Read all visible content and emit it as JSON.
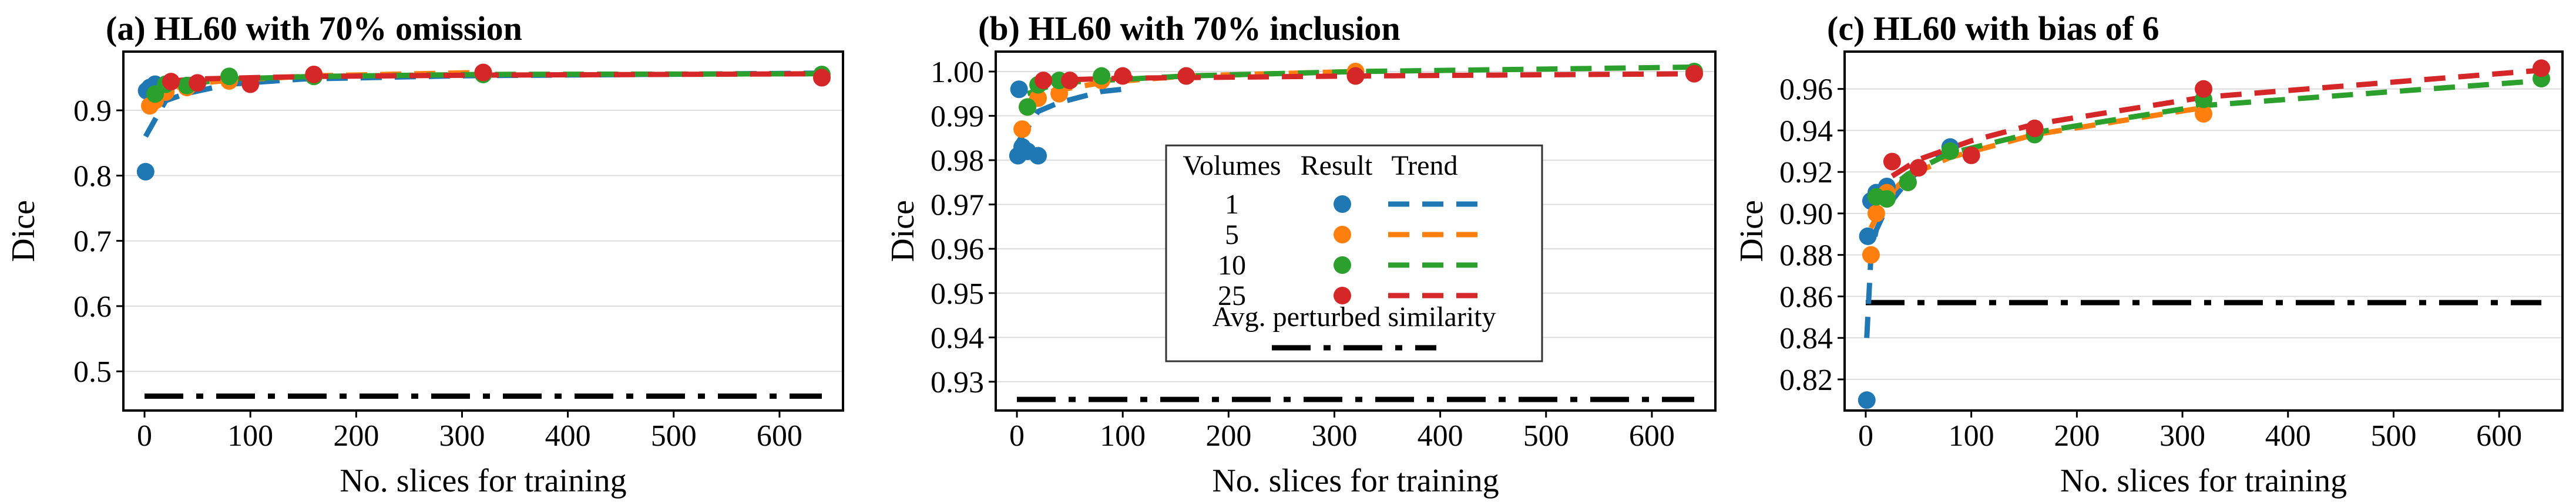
{
  "chart_data": [
    {
      "type": "scatter",
      "title": "(a) HL60 with 70% omission",
      "xlabel": "No. slices for training",
      "ylabel": "Dice",
      "xlim": [
        -20,
        660
      ],
      "ylim": [
        0.44,
        0.99
      ],
      "xticks": [
        0,
        100,
        200,
        300,
        400,
        500,
        600
      ],
      "yticks": [
        0.5,
        0.6,
        0.7,
        0.8,
        0.9
      ],
      "ytick_labels": [
        "0.5",
        "0.6",
        "0.7",
        "0.8",
        "0.9"
      ],
      "grid": "horizontal",
      "baseline": {
        "name": "Avg. perturbed similarity",
        "value": 0.462
      },
      "series": [
        {
          "name": "1",
          "color": "#1f77b4",
          "x": [
            1,
            2,
            5,
            10,
            20
          ],
          "y": [
            0.806,
            0.93,
            0.935,
            0.94,
            0.93
          ],
          "trend": [
            [
              1,
              0.86
            ],
            [
              20,
              0.915
            ],
            [
              40,
              0.926
            ],
            [
              80,
              0.94
            ],
            [
              150,
              0.948
            ],
            [
              300,
              0.953
            ],
            [
              640,
              0.957
            ]
          ]
        },
        {
          "name": "5",
          "color": "#ff7f0e",
          "x": [
            5,
            10,
            20,
            40,
            80,
            160,
            320
          ],
          "y": [
            0.907,
            0.915,
            0.928,
            0.935,
            0.945,
            0.955,
            0.958
          ],
          "trend": [
            [
              5,
              0.905
            ],
            [
              20,
              0.93
            ],
            [
              40,
              0.94
            ],
            [
              80,
              0.946
            ],
            [
              160,
              0.953
            ],
            [
              320,
              0.958
            ]
          ]
        },
        {
          "name": "10",
          "color": "#2ca02c",
          "x": [
            10,
            20,
            40,
            80,
            160,
            320,
            640
          ],
          "y": [
            0.925,
            0.94,
            0.938,
            0.952,
            0.952,
            0.955,
            0.955
          ],
          "trend": [
            [
              10,
              0.93
            ],
            [
              40,
              0.94
            ],
            [
              80,
              0.948
            ],
            [
              160,
              0.952
            ],
            [
              320,
              0.955
            ],
            [
              640,
              0.956
            ]
          ]
        },
        {
          "name": "25",
          "color": "#d62728",
          "x": [
            25,
            50,
            100,
            160,
            320,
            640
          ],
          "y": [
            0.944,
            0.942,
            0.94,
            0.955,
            0.958,
            0.95
          ],
          "trend": [
            [
              25,
              0.945
            ],
            [
              50,
              0.948
            ],
            [
              100,
              0.95
            ],
            [
              160,
              0.952
            ],
            [
              320,
              0.954
            ],
            [
              640,
              0.956
            ]
          ]
        }
      ]
    },
    {
      "type": "scatter",
      "title": "(b) HL60 with 70% inclusion",
      "xlabel": "No. slices for training",
      "ylabel": "Dice",
      "xlim": [
        -20,
        660
      ],
      "ylim": [
        0.9235,
        1.0045
      ],
      "xticks": [
        0,
        100,
        200,
        300,
        400,
        500,
        600
      ],
      "yticks": [
        0.93,
        0.94,
        0.95,
        0.96,
        0.97,
        0.98,
        0.99,
        1.0
      ],
      "ytick_labels": [
        "0.93",
        "0.94",
        "0.95",
        "0.96",
        "0.97",
        "0.98",
        "0.99",
        "1.00"
      ],
      "grid": "horizontal",
      "baseline": {
        "name": "Avg. perturbed similarity",
        "value": 0.926
      },
      "series": [
        {
          "name": "1",
          "color": "#1f77b4",
          "x": [
            1,
            2,
            5,
            10,
            20
          ],
          "y": [
            0.981,
            0.996,
            0.983,
            0.982,
            0.981
          ],
          "trend": [
            [
              1,
              0.984
            ],
            [
              20,
              0.991
            ],
            [
              40,
              0.993
            ],
            [
              80,
              0.9955
            ],
            [
              100,
              0.996
            ]
          ]
        },
        {
          "name": "5",
          "color": "#ff7f0e",
          "x": [
            5,
            10,
            20,
            40,
            80,
            160,
            320
          ],
          "y": [
            0.987,
            0.992,
            0.994,
            0.995,
            0.998,
            0.999,
            1.0
          ],
          "trend": [
            [
              5,
              0.992
            ],
            [
              20,
              0.995
            ],
            [
              80,
              0.9975
            ],
            [
              160,
              0.999
            ],
            [
              320,
              1.0
            ]
          ]
        },
        {
          "name": "10",
          "color": "#2ca02c",
          "x": [
            10,
            20,
            40,
            80,
            160,
            320,
            640
          ],
          "y": [
            0.992,
            0.997,
            0.998,
            0.999,
            0.999,
            0.999,
            1.0
          ],
          "trend": [
            [
              10,
              0.995
            ],
            [
              40,
              0.9975
            ],
            [
              160,
              0.999
            ],
            [
              320,
              1.0
            ],
            [
              640,
              1.001
            ]
          ]
        },
        {
          "name": "25",
          "color": "#d62728",
          "x": [
            25,
            50,
            100,
            160,
            320,
            640
          ],
          "y": [
            0.998,
            0.998,
            0.999,
            0.999,
            0.999,
            0.9995
          ],
          "trend": [
            [
              25,
              0.998
            ],
            [
              100,
              0.9985
            ],
            [
              320,
              0.999
            ],
            [
              640,
              0.9995
            ]
          ]
        }
      ],
      "legend": {
        "placement": "center",
        "headers": [
          "Volumes",
          "Result",
          "Trend"
        ],
        "baseline_label": "Avg. perturbed similarity"
      }
    },
    {
      "type": "scatter",
      "title": "(c) HL60 with bias of 6",
      "xlabel": "No. slices for training",
      "ylabel": "Dice",
      "xlim": [
        -20,
        660
      ],
      "ylim": [
        0.805,
        0.978
      ],
      "xticks": [
        0,
        100,
        200,
        300,
        400,
        500,
        600
      ],
      "yticks": [
        0.82,
        0.84,
        0.86,
        0.88,
        0.9,
        0.92,
        0.94,
        0.96
      ],
      "ytick_labels": [
        "0.82",
        "0.84",
        "0.86",
        "0.88",
        "0.90",
        "0.92",
        "0.94",
        "0.96"
      ],
      "grid": "horizontal",
      "baseline": {
        "name": "Avg. perturbed similarity",
        "value": 0.857
      },
      "series": [
        {
          "name": "1",
          "color": "#1f77b4",
          "x": [
            1,
            2,
            5,
            10,
            20,
            40,
            80
          ],
          "y": [
            0.81,
            0.889,
            0.906,
            0.91,
            0.913,
            0.915,
            0.932
          ],
          "trend": [
            [
              1,
              0.84
            ],
            [
              5,
              0.88
            ],
            [
              10,
              0.892
            ],
            [
              20,
              0.903
            ],
            [
              40,
              0.916
            ],
            [
              80,
              0.932
            ]
          ]
        },
        {
          "name": "5",
          "color": "#ff7f0e",
          "x": [
            5,
            10,
            20,
            40,
            80,
            160,
            320
          ],
          "y": [
            0.88,
            0.9,
            0.91,
            0.915,
            0.93,
            0.94,
            0.948
          ],
          "trend": [
            [
              5,
              0.893
            ],
            [
              20,
              0.908
            ],
            [
              40,
              0.918
            ],
            [
              80,
              0.927
            ],
            [
              160,
              0.938
            ],
            [
              320,
              0.951
            ]
          ]
        },
        {
          "name": "10",
          "color": "#2ca02c",
          "x": [
            10,
            20,
            40,
            80,
            160,
            320,
            640
          ],
          "y": [
            0.908,
            0.907,
            0.915,
            0.93,
            0.938,
            0.955,
            0.965
          ],
          "trend": [
            [
              10,
              0.905
            ],
            [
              20,
              0.911
            ],
            [
              40,
              0.919
            ],
            [
              80,
              0.929
            ],
            [
              160,
              0.939
            ],
            [
              320,
              0.952
            ],
            [
              640,
              0.964
            ]
          ]
        },
        {
          "name": "25",
          "color": "#d62728",
          "x": [
            25,
            50,
            100,
            160,
            320,
            640
          ],
          "y": [
            0.925,
            0.922,
            0.928,
            0.941,
            0.96,
            0.97
          ],
          "trend": [
            [
              25,
              0.918
            ],
            [
              50,
              0.926
            ],
            [
              100,
              0.935
            ],
            [
              160,
              0.943
            ],
            [
              320,
              0.956
            ],
            [
              640,
              0.969
            ]
          ]
        }
      ]
    }
  ]
}
